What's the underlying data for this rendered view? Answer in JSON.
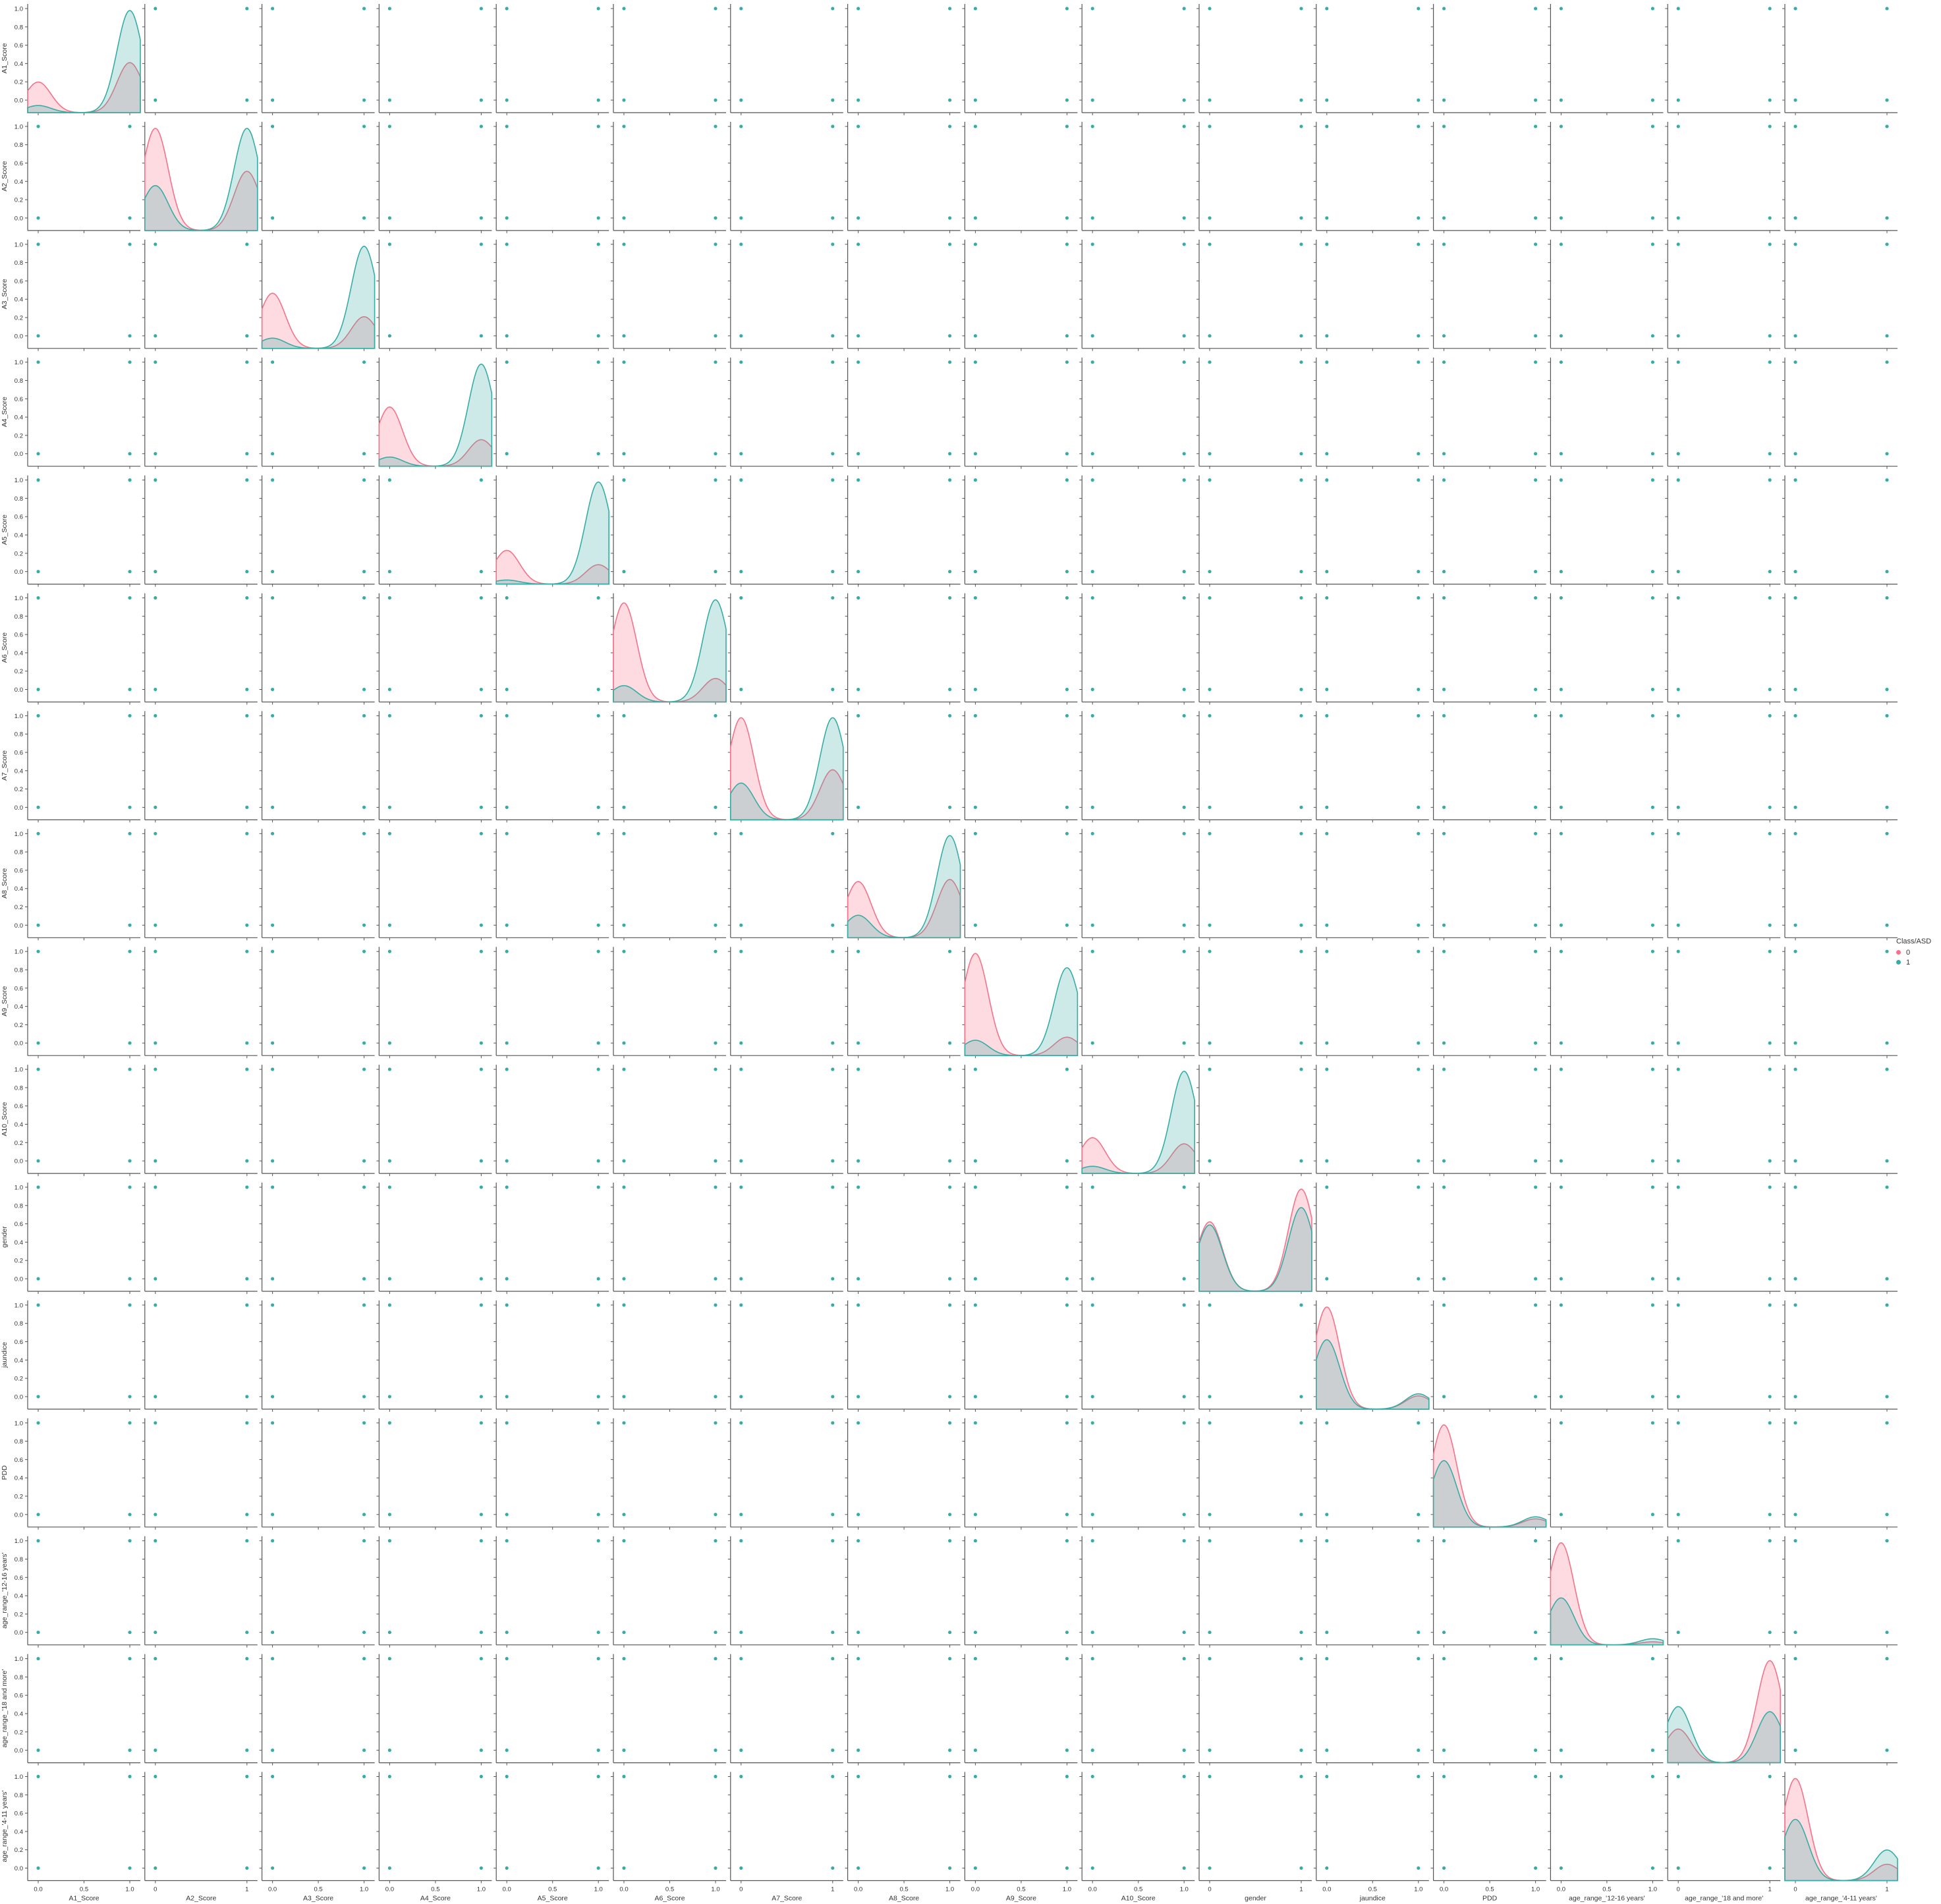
{
  "chart_data": {
    "type": "scatter",
    "kind": "pairplot",
    "variables": [
      "A1_Score",
      "A2_Score",
      "A3_Score",
      "A4_Score",
      "A5_Score",
      "A6_Score",
      "A7_Score",
      "A8_Score",
      "A9_Score",
      "A10_Score",
      "gender",
      "jaundice",
      "PDD",
      "age_range_'12-16 years'",
      "age_range_'18 and more'",
      "age_range_'4-11 years'"
    ],
    "offdiag_points": [
      [
        0,
        0
      ],
      [
        0,
        1
      ],
      [
        1,
        0
      ],
      [
        1,
        1
      ]
    ],
    "y_ticks": [
      "0.0",
      "0.2",
      "0.4",
      "0.6",
      "0.8",
      "1.0"
    ],
    "x_tick_sets": {
      "fine": [
        "0.0",
        "0.5",
        "1.0"
      ],
      "int": [
        "0",
        "1"
      ],
      "two": [
        "0.0",
        "1.0"
      ]
    },
    "x_tick_kind": [
      "fine",
      "int",
      "fine",
      "fine",
      "fine",
      "fine",
      "int",
      "fine",
      "fine",
      "fine",
      "int",
      "fine",
      "fine",
      "fine",
      "int",
      "int"
    ],
    "diagonal": [
      {
        "h0": [
          0.3,
          0.49
        ],
        "h1": [
          0.07,
          1.0
        ]
      },
      {
        "h0": [
          1.0,
          0.58
        ],
        "h1": [
          0.44,
          1.0
        ]
      },
      {
        "h0": [
          0.54,
          0.31
        ],
        "h1": [
          0.1,
          1.0
        ]
      },
      {
        "h0": [
          0.58,
          0.26
        ],
        "h1": [
          0.09,
          1.0
        ]
      },
      {
        "h0": [
          0.33,
          0.19
        ],
        "h1": [
          0.04,
          1.0
        ]
      },
      {
        "h0": [
          0.97,
          0.23
        ],
        "h1": [
          0.16,
          1.0
        ]
      },
      {
        "h0": [
          1.0,
          0.49
        ],
        "h1": [
          0.36,
          1.0
        ]
      },
      {
        "h0": [
          0.55,
          0.57
        ],
        "h1": [
          0.22,
          1.0
        ]
      },
      {
        "h0": [
          1.0,
          0.18
        ],
        "h1": [
          0.15,
          0.86
        ]
      },
      {
        "h0": [
          0.35,
          0.29
        ],
        "h1": [
          0.07,
          1.0
        ]
      },
      {
        "h0": [
          0.68,
          1.0
        ],
        "h1": [
          0.65,
          0.82
        ]
      },
      {
        "h0": [
          1.0,
          0.13
        ],
        "h1": [
          0.68,
          0.15
        ]
      },
      {
        "h0": [
          1.0,
          0.08
        ],
        "h1": [
          0.65,
          0.1
        ]
      },
      {
        "h0": [
          1.0,
          0.03
        ],
        "h1": [
          0.46,
          0.06
        ]
      },
      {
        "h0": [
          0.33,
          1.0
        ],
        "h1": [
          0.55,
          0.5
        ]
      },
      {
        "h0": [
          1.0,
          0.16
        ],
        "h1": [
          0.6,
          0.3
        ]
      }
    ],
    "legend": {
      "title": "Class/ASD",
      "entries": [
        "0",
        "1"
      ],
      "placement": "right"
    },
    "colors": {
      "class0": "#f77189",
      "class1": "#36ada4",
      "axis": "#555555"
    }
  }
}
